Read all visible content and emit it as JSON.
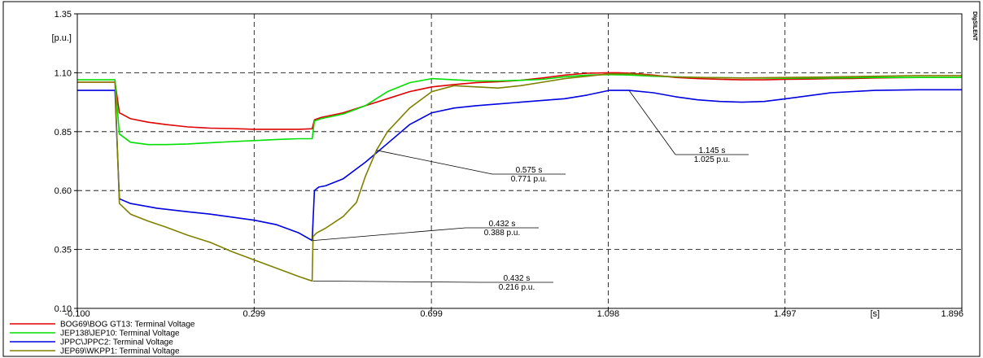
{
  "chart_data": {
    "type": "line",
    "title": "",
    "xlabel": "",
    "ylabel": "",
    "x_unit": "[s]",
    "y_unit": "[p.u.]",
    "xlim": [
      -0.1,
      1.896
    ],
    "ylim": [
      0.1,
      1.35
    ],
    "x_ticks": [
      -0.1,
      0.299,
      0.699,
      1.098,
      1.497,
      1.896
    ],
    "x_tick_labels": [
      "-0.100",
      "0.299",
      "0.699",
      "1.098",
      "1.497",
      "1.896"
    ],
    "y_ticks": [
      0.1,
      0.35,
      0.6,
      0.85,
      1.1,
      1.35
    ],
    "y_tick_labels": [
      "0.10",
      "0.35",
      "0.60",
      "0.85",
      "1.10",
      "1.35"
    ],
    "grid": true,
    "legend_position": "bottom-left",
    "brand_text": "DIgSILENT",
    "series": [
      {
        "name": "BOG69\\BOG GT13: Terminal Voltage",
        "color": "#e00000",
        "x": [
          -0.1,
          -0.02,
          -0.015,
          -0.005,
          0.02,
          0.06,
          0.1,
          0.15,
          0.2,
          0.25,
          0.3,
          0.35,
          0.4,
          0.43,
          0.435,
          0.45,
          0.5,
          0.55,
          0.6,
          0.65,
          0.7,
          0.75,
          0.8,
          0.85,
          0.9,
          0.95,
          1.0,
          1.05,
          1.1,
          1.12,
          1.15,
          1.2,
          1.25,
          1.3,
          1.35,
          1.4,
          1.45,
          1.5,
          1.55,
          1.6,
          1.65,
          1.7,
          1.75,
          1.8,
          1.85,
          1.896
        ],
        "y": [
          1.06,
          1.06,
          1.06,
          0.93,
          0.905,
          0.89,
          0.88,
          0.87,
          0.865,
          0.863,
          0.86,
          0.86,
          0.86,
          0.862,
          0.9,
          0.91,
          0.93,
          0.96,
          0.99,
          1.02,
          1.04,
          1.05,
          1.058,
          1.062,
          1.068,
          1.078,
          1.09,
          1.098,
          1.1,
          1.1,
          1.098,
          1.09,
          1.08,
          1.075,
          1.072,
          1.07,
          1.07,
          1.072,
          1.073,
          1.075,
          1.076,
          1.078,
          1.079,
          1.08,
          1.08,
          1.08
        ]
      },
      {
        "name": "JEP138\\JEP10: Terminal Voltage",
        "color": "#00e000",
        "x": [
          -0.1,
          -0.02,
          -0.015,
          -0.005,
          0.02,
          0.06,
          0.1,
          0.15,
          0.2,
          0.25,
          0.3,
          0.35,
          0.4,
          0.43,
          0.435,
          0.45,
          0.5,
          0.55,
          0.6,
          0.65,
          0.7,
          0.75,
          0.8,
          0.85,
          0.9,
          0.95,
          1.0,
          1.05,
          1.1,
          1.15,
          1.2,
          1.3,
          1.4,
          1.5,
          1.6,
          1.7,
          1.8,
          1.896
        ],
        "y": [
          1.07,
          1.07,
          1.07,
          0.84,
          0.805,
          0.795,
          0.795,
          0.798,
          0.803,
          0.808,
          0.812,
          0.817,
          0.82,
          0.82,
          0.895,
          0.905,
          0.925,
          0.96,
          1.02,
          1.058,
          1.075,
          1.07,
          1.065,
          1.065,
          1.068,
          1.072,
          1.083,
          1.09,
          1.092,
          1.09,
          1.085,
          1.08,
          1.078,
          1.077,
          1.078,
          1.08,
          1.08,
          1.08
        ]
      },
      {
        "name": "JPPC\\JPPC2: Terminal Voltage",
        "color": "#0000e0",
        "x": [
          -0.1,
          -0.02,
          -0.015,
          -0.005,
          0.02,
          0.08,
          0.15,
          0.2,
          0.25,
          0.3,
          0.35,
          0.4,
          0.43,
          0.435,
          0.445,
          0.46,
          0.5,
          0.55,
          0.6,
          0.65,
          0.7,
          0.75,
          0.8,
          0.9,
          1.0,
          1.05,
          1.1,
          1.145,
          1.2,
          1.25,
          1.3,
          1.35,
          1.4,
          1.45,
          1.5,
          1.6,
          1.7,
          1.8,
          1.896
        ],
        "y": [
          1.025,
          1.025,
          1.025,
          0.565,
          0.545,
          0.525,
          0.51,
          0.5,
          0.487,
          0.474,
          0.455,
          0.42,
          0.388,
          0.6,
          0.615,
          0.62,
          0.65,
          0.72,
          0.8,
          0.88,
          0.93,
          0.95,
          0.96,
          0.975,
          0.99,
          1.005,
          1.025,
          1.025,
          1.015,
          0.998,
          0.985,
          0.978,
          0.975,
          0.978,
          0.99,
          1.015,
          1.025,
          1.028,
          1.028
        ]
      },
      {
        "name": "JEP69\\WKPP1: Terminal Voltage",
        "color": "#808000",
        "x": [
          -0.1,
          -0.02,
          -0.015,
          -0.005,
          0.02,
          0.06,
          0.1,
          0.15,
          0.2,
          0.25,
          0.3,
          0.35,
          0.4,
          0.43,
          0.432,
          0.44,
          0.46,
          0.5,
          0.53,
          0.55,
          0.575,
          0.6,
          0.65,
          0.7,
          0.75,
          0.8,
          0.85,
          0.9,
          0.95,
          1.0,
          1.05,
          1.1,
          1.15,
          1.2,
          1.25,
          1.3,
          1.4,
          1.5,
          1.6,
          1.7,
          1.8,
          1.896
        ],
        "y": [
          1.06,
          1.06,
          1.06,
          0.545,
          0.5,
          0.47,
          0.445,
          0.41,
          0.38,
          0.34,
          0.305,
          0.27,
          0.235,
          0.216,
          0.405,
          0.42,
          0.44,
          0.49,
          0.55,
          0.66,
          0.771,
          0.85,
          0.95,
          1.02,
          1.045,
          1.04,
          1.035,
          1.045,
          1.06,
          1.075,
          1.085,
          1.095,
          1.095,
          1.088,
          1.082,
          1.08,
          1.078,
          1.08,
          1.082,
          1.085,
          1.088,
          1.088
        ]
      }
    ],
    "annotations": [
      {
        "x": 0.575,
        "y": 0.771,
        "x_text": "0.575 s",
        "y_text": "0.771 p.u."
      },
      {
        "x": 0.432,
        "y": 0.388,
        "x_text": "0.432 s",
        "y_text": "0.388 p.u."
      },
      {
        "x": 0.432,
        "y": 0.216,
        "x_text": "0.432 s",
        "y_text": "0.216 p.u."
      },
      {
        "x": 1.145,
        "y": 1.025,
        "x_text": "1.145 s",
        "y_text": "1.025 p.u."
      }
    ]
  }
}
